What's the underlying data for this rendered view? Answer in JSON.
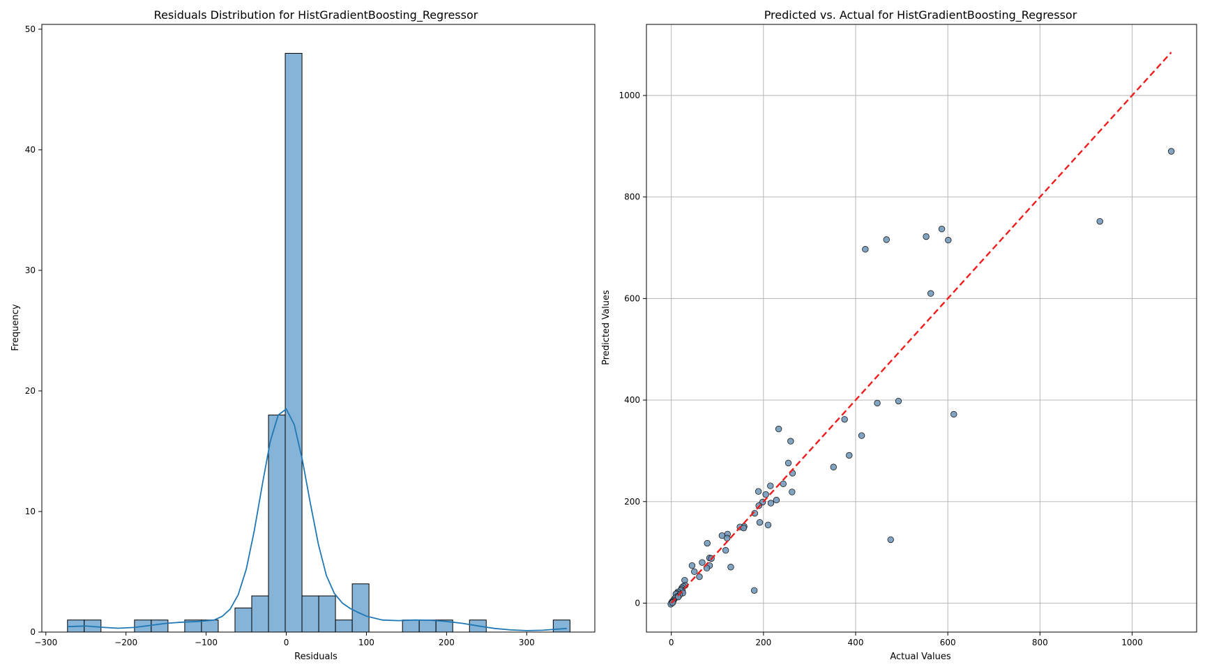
{
  "chart_data": [
    {
      "type": "histogram",
      "title": "Residuals Distribution for HistGradientBoosting_Regressor",
      "xlabel": "Residuals",
      "ylabel": "Frequency",
      "xlim": [
        -305,
        385
      ],
      "ylim": [
        0,
        50.4
      ],
      "xticks": [
        -300,
        -200,
        -100,
        0,
        100,
        200,
        300
      ],
      "yticks": [
        0,
        10,
        20,
        30,
        40,
        50
      ],
      "grid": false,
      "bin_start": -273,
      "bin_width": 20.9,
      "counts": [
        1,
        1,
        0,
        0,
        1,
        1,
        0,
        1,
        1,
        0,
        2,
        3,
        18,
        48,
        3,
        3,
        1,
        4,
        0,
        0,
        1,
        1,
        1,
        0,
        1,
        0,
        0,
        0,
        0,
        1
      ],
      "kde": {
        "x": [
          -273,
          -250,
          -230,
          -210,
          -190,
          -170,
          -150,
          -130,
          -110,
          -90,
          -80,
          -70,
          -60,
          -50,
          -40,
          -30,
          -20,
          -10,
          0,
          10,
          20,
          30,
          40,
          50,
          60,
          70,
          80,
          90,
          100,
          120,
          140,
          160,
          180,
          200,
          220,
          240,
          260,
          280,
          300,
          320,
          350
        ],
        "y": [
          0.45,
          0.5,
          0.4,
          0.32,
          0.38,
          0.55,
          0.72,
          0.82,
          0.88,
          1.0,
          1.3,
          1.9,
          3.1,
          5.2,
          8.4,
          12.2,
          15.8,
          18.0,
          18.5,
          17.2,
          14.3,
          10.7,
          7.3,
          4.7,
          3.2,
          2.4,
          1.95,
          1.62,
          1.32,
          1.0,
          0.95,
          1.0,
          0.98,
          0.88,
          0.72,
          0.5,
          0.3,
          0.18,
          0.12,
          0.15,
          0.3
        ]
      },
      "bar_color": "#86b4d8",
      "kde_color": "#1f77b4"
    },
    {
      "type": "scatter",
      "title": "Predicted vs. Actual for HistGradientBoosting_Regressor",
      "xlabel": "Actual Values",
      "ylabel": "Predicted Values",
      "xlim": [
        -54,
        1140
      ],
      "ylim": [
        -57,
        1140
      ],
      "xticks": [
        0,
        200,
        400,
        600,
        800,
        1000
      ],
      "yticks": [
        0,
        200,
        400,
        600,
        800,
        1000
      ],
      "grid": true,
      "point_color": "#6c94b8",
      "line_color": "#ee1c1c",
      "reference_line": {
        "x": [
          0,
          1085
        ],
        "y": [
          0,
          1085
        ]
      },
      "points": [
        [
          1085,
          890
        ],
        [
          930,
          752
        ],
        [
          587,
          737
        ],
        [
          553,
          722
        ],
        [
          467,
          716
        ],
        [
          601,
          715
        ],
        [
          421,
          697
        ],
        [
          563,
          610
        ],
        [
          493,
          398
        ],
        [
          447,
          394
        ],
        [
          613,
          372
        ],
        [
          376,
          362
        ],
        [
          233,
          343
        ],
        [
          413,
          330
        ],
        [
          259,
          319
        ],
        [
          386,
          291
        ],
        [
          254,
          276
        ],
        [
          352,
          268
        ],
        [
          263,
          256
        ],
        [
          243,
          235
        ],
        [
          215,
          231
        ],
        [
          262,
          219
        ],
        [
          189,
          220
        ],
        [
          205,
          214
        ],
        [
          228,
          203
        ],
        [
          198,
          199
        ],
        [
          216,
          197
        ],
        [
          190,
          192
        ],
        [
          181,
          177
        ],
        [
          192,
          159
        ],
        [
          210,
          154
        ],
        [
          158,
          151
        ],
        [
          149,
          150
        ],
        [
          157,
          148
        ],
        [
          122,
          136
        ],
        [
          110,
          133
        ],
        [
          121,
          128
        ],
        [
          78,
          118
        ],
        [
          118,
          104
        ],
        [
          83,
          89
        ],
        [
          87,
          88
        ],
        [
          67,
          80
        ],
        [
          83,
          74
        ],
        [
          45,
          74
        ],
        [
          77,
          69
        ],
        [
          129,
          71
        ],
        [
          50,
          62
        ],
        [
          61,
          52
        ],
        [
          29,
          45
        ],
        [
          476,
          125
        ],
        [
          180,
          25
        ],
        [
          30,
          35
        ],
        [
          26,
          33
        ],
        [
          23,
          30
        ],
        [
          22,
          27
        ],
        [
          24,
          24
        ],
        [
          20,
          25
        ],
        [
          14,
          22
        ],
        [
          25,
          20
        ],
        [
          12,
          19
        ],
        [
          10,
          18
        ],
        [
          18,
          16
        ],
        [
          13,
          13
        ],
        [
          8,
          10
        ],
        [
          15,
          12
        ],
        [
          5,
          6
        ],
        [
          4,
          4
        ],
        [
          2,
          3
        ],
        [
          1,
          1
        ],
        [
          0,
          0
        ],
        [
          -1,
          -2
        ],
        [
          3,
          1
        ]
      ]
    }
  ]
}
